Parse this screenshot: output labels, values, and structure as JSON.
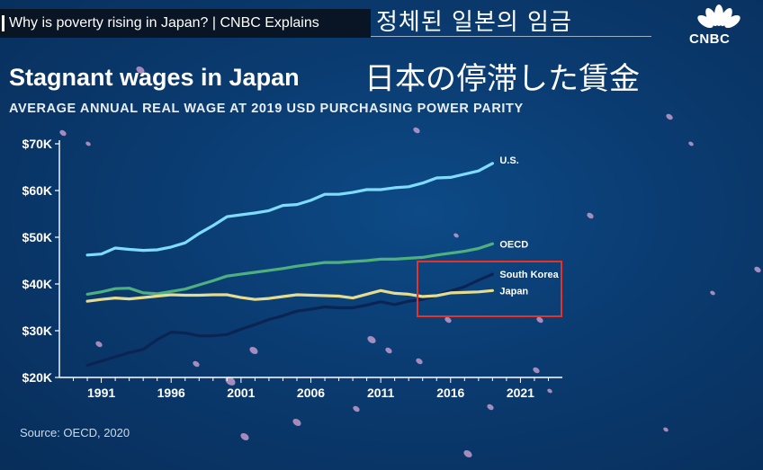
{
  "video": {
    "title": "Why is poverty rising in Japan? | CNBC Explains",
    "channel_logo_text": "CNBC"
  },
  "subtitles": {
    "korean": "정체된  일본의 임금",
    "japanese": "日本の停滞した賃金"
  },
  "colors": {
    "background": "#0a3b70",
    "us": "#7fdcff",
    "oecd": "#4fb07f",
    "south_korea": "#0b2454",
    "japan": "#e5dc8f",
    "highlight_box": "#e5332a",
    "petals": "#d8a8d8"
  },
  "chart_data": {
    "type": "line",
    "title": "Stagnant wages in Japan",
    "subtitle": "AVERAGE ANNUAL REAL WAGE AT 2019 USD PURCHASING POWER PARITY",
    "source": "Source: OECD, 2020",
    "xlim": [
      1988,
      2024
    ],
    "ylim": [
      20,
      70
    ],
    "x_ticks": [
      1991,
      1996,
      2001,
      2006,
      2011,
      2016,
      2021
    ],
    "x_tick_labels": [
      "1991",
      "1996",
      "2001",
      "2006",
      "2011",
      "2016",
      "2021"
    ],
    "y_ticks": [
      20,
      30,
      40,
      50,
      60,
      70
    ],
    "y_tick_labels": [
      "$20K",
      "$30K",
      "$40K",
      "$50K",
      "$60K",
      "$70K"
    ],
    "x": [
      1990,
      1991,
      1992,
      1993,
      1994,
      1995,
      1996,
      1997,
      1998,
      1999,
      2000,
      2001,
      2002,
      2003,
      2004,
      2005,
      2006,
      2007,
      2008,
      2009,
      2010,
      2011,
      2012,
      2013,
      2014,
      2015,
      2016,
      2017,
      2018,
      2019
    ],
    "series": [
      {
        "name": "U.S.",
        "key": "us",
        "values": [
          46.2,
          46.4,
          47.7,
          47.4,
          47.2,
          47.3,
          47.9,
          48.8,
          50.8,
          52.5,
          54.4,
          54.8,
          55.2,
          55.7,
          56.8,
          57.0,
          57.9,
          59.2,
          59.2,
          59.6,
          60.2,
          60.2,
          60.6,
          60.8,
          61.6,
          62.7,
          62.8,
          63.5,
          64.2,
          65.8
        ]
      },
      {
        "name": "OECD",
        "key": "oecd",
        "values": [
          37.8,
          38.3,
          39.0,
          39.1,
          38.1,
          37.9,
          38.4,
          38.9,
          39.8,
          40.7,
          41.7,
          42.1,
          42.5,
          42.9,
          43.3,
          43.8,
          44.2,
          44.6,
          44.6,
          44.8,
          45.0,
          45.3,
          45.3,
          45.5,
          45.7,
          46.2,
          46.6,
          47.0,
          47.6,
          48.6
        ]
      },
      {
        "name": "South Korea",
        "key": "south_korea",
        "values": [
          22.6,
          23.5,
          24.4,
          25.3,
          26.0,
          28.1,
          29.7,
          29.5,
          28.9,
          28.9,
          29.2,
          30.3,
          31.3,
          32.4,
          33.2,
          34.2,
          34.6,
          35.1,
          34.9,
          34.9,
          35.5,
          36.2,
          35.6,
          36.3,
          36.7,
          37.6,
          38.5,
          39.4,
          40.8,
          42.1
        ]
      },
      {
        "name": "Japan",
        "key": "japan",
        "values": [
          36.3,
          36.7,
          37.0,
          36.8,
          37.1,
          37.4,
          37.7,
          37.6,
          37.6,
          37.7,
          37.7,
          37.1,
          36.7,
          36.9,
          37.3,
          37.7,
          37.6,
          37.5,
          37.4,
          37.0,
          37.8,
          38.6,
          38.0,
          37.8,
          37.3,
          37.5,
          38.1,
          38.2,
          38.3,
          38.6
        ]
      }
    ],
    "grid": false,
    "legend": "inline labels at line ends",
    "annotation": "red box highlighting South Korea overtaking Japan"
  }
}
